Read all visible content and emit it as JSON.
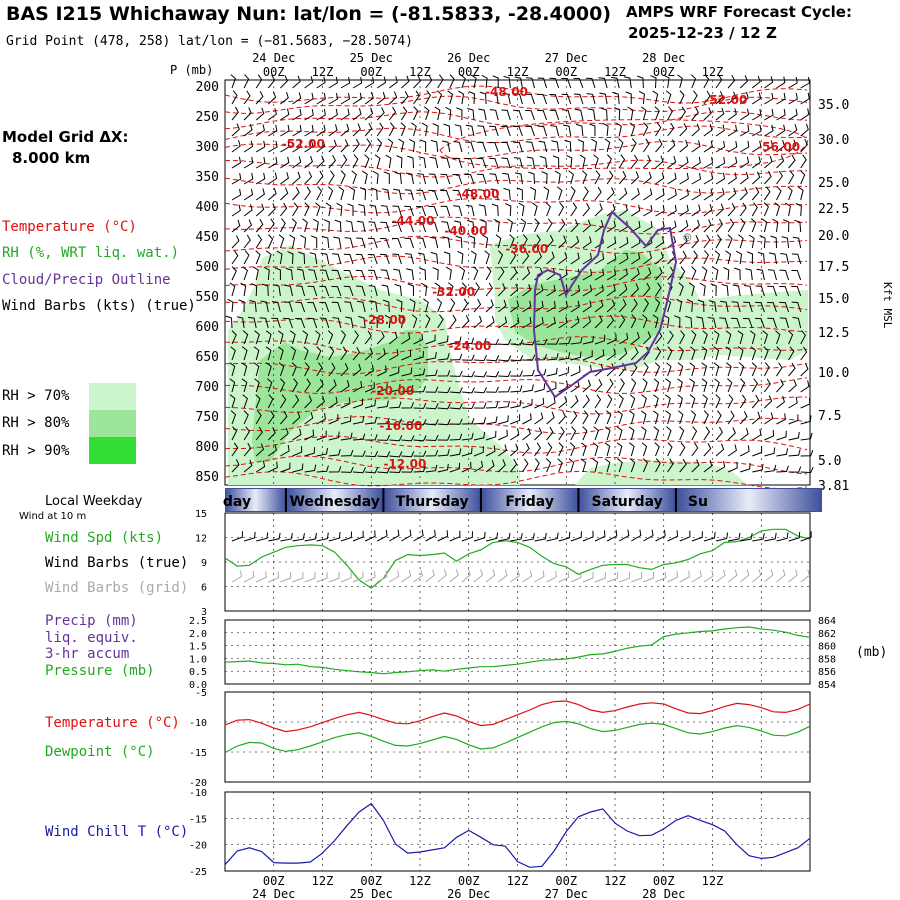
{
  "header": {
    "title": "BAS I215 Whichaway Nun:  lat/lon = (-81.5833, -28.4000)",
    "grid_point": "Grid Point (478, 258) lat/lon = (−81.5683, −28.5074)",
    "cycle_label": "AMPS WRF Forecast Cycle:",
    "cycle_value": "2025-12-23 / 12  Z"
  },
  "left_panel": {
    "model_grid_label": "Model Grid ΔX:",
    "model_grid_value": "8.000 km",
    "legend_items": [
      {
        "text": "Temperature (°C)",
        "color": "#dd1111"
      },
      {
        "text": "RH (%, WRT liq. wat.)",
        "color": "#22aa22"
      },
      {
        "text": "Cloud/Precip Outline",
        "color": "#663399"
      },
      {
        "text": "Wind Barbs (kts) (true)",
        "color": "#000000"
      }
    ],
    "rh_legend": [
      {
        "text": "RH > 70%",
        "color": "#ccf5cc"
      },
      {
        "text": "RH > 80%",
        "color": "#9be69b"
      },
      {
        "text": "RH > 90%",
        "color": "#33dd33"
      }
    ]
  },
  "time_axis": {
    "top_dates": [
      "24 Dec",
      "25 Dec",
      "26 Dec",
      "27 Dec",
      "28 Dec"
    ],
    "hour_labels": [
      "00Z",
      "12Z",
      "00Z",
      "12Z",
      "00Z",
      "12Z",
      "00Z",
      "12Z",
      "00Z",
      "12Z"
    ],
    "bottom_dates": [
      "24 Dec",
      "25 Dec",
      "26 Dec",
      "27 Dec",
      "28 Dec"
    ]
  },
  "weekday_bar": {
    "title": "Local Weekday",
    "days": [
      "day",
      "Wednesday",
      "Thursday",
      "Friday",
      "Saturday",
      "Su"
    ]
  },
  "colors": {
    "temperature": "#dd1111",
    "rh": "#22aa22",
    "cloud": "#663399",
    "wind_chill": "#1a1aaa",
    "grid_barbs": "#aaaaaa",
    "weekday_blue": "#3d4f9c"
  },
  "chart_data": [
    {
      "type": "heatmap",
      "name": "vertical cross-section",
      "ylabel": "P (mb)",
      "yticks": [
        "200",
        "250",
        "300",
        "350",
        "400",
        "450",
        "500",
        "550",
        "600",
        "650",
        "700",
        "750",
        "800",
        "850"
      ],
      "ylim": [
        190,
        865
      ],
      "right_axis_label": "Kft MSL",
      "right_ticks": [
        "35.0",
        "30.0",
        "25.0",
        "22.5",
        "20.0",
        "17.5",
        "15.0",
        "12.5",
        "10.0",
        "7.5",
        "5.0",
        "3.81"
      ],
      "temperature_labels": [
        {
          "text": "-48.00",
          "t": 52,
          "p": 210
        },
        {
          "text": "-52.00",
          "t": 106,
          "p": 223
        },
        {
          "text": "-52.00",
          "t": 2,
          "p": 297
        },
        {
          "text": "-56.00",
          "t": 119,
          "p": 302
        },
        {
          "text": "-48.00",
          "t": 45,
          "p": 380
        },
        {
          "text": "-44.00",
          "t": 29,
          "p": 425
        },
        {
          "text": "-40.00",
          "t": 42,
          "p": 442
        },
        {
          "text": "-36.00",
          "t": 57,
          "p": 472
        },
        {
          "text": "-32.00",
          "t": 39,
          "p": 543
        },
        {
          "text": "-28.00",
          "t": 22,
          "p": 590
        },
        {
          "text": "-24.00",
          "t": 43,
          "p": 633
        },
        {
          "text": "-20.00",
          "t": 24,
          "p": 708
        },
        {
          "text": "-16.00",
          "t": 26,
          "p": 767
        },
        {
          "text": "-12.00",
          "t": 27,
          "p": 830
        }
      ],
      "t_range_hours": [
        -12,
        132
      ]
    },
    {
      "type": "line",
      "name": "10 m wind",
      "title": "Wind at 10 m",
      "labels": [
        "Wind Spd (kts)",
        "Wind Barbs (true)",
        "Wind Barbs (grid)"
      ],
      "yticks": [
        "15",
        "12",
        "9",
        "6",
        "3"
      ],
      "ylim": [
        3,
        15
      ],
      "x": [
        -12,
        -9,
        -6,
        -3,
        0,
        3,
        6,
        9,
        12,
        15,
        18,
        21,
        24,
        27,
        30,
        33,
        36,
        39,
        42,
        45,
        48,
        51,
        54,
        57,
        60,
        63,
        66,
        69,
        72,
        75,
        78,
        81,
        84,
        87,
        90,
        93,
        96,
        99,
        102,
        105,
        108,
        111,
        114,
        117,
        120,
        123,
        126,
        129,
        132
      ],
      "series": [
        {
          "name": "Wind Spd (kts)",
          "values": [
            9.5,
            8.5,
            8.6,
            9.6,
            10.2,
            10.8,
            11.0,
            11.1,
            11.0,
            10.2,
            8.6,
            6.8,
            5.8,
            7.0,
            9.2,
            9.9,
            9.8,
            9.9,
            10.1,
            9.1,
            10.0,
            10.5,
            11.4,
            11.6,
            11.4,
            10.8,
            9.7,
            8.8,
            8.4,
            7.5,
            8.1,
            8.6,
            8.7,
            8.7,
            8.3,
            8.1,
            8.7,
            8.9,
            9.3,
            10.0,
            10.4,
            11.4,
            11.5,
            12.0,
            12.8,
            13.0,
            13.0,
            12.2,
            11.8
          ]
        }
      ]
    },
    {
      "type": "line",
      "name": "precip and pressure",
      "labels": [
        "Precip (mm)",
        "liq. equiv.",
        "3-hr accum",
        "Pressure (mb)"
      ],
      "yticks": [
        "2.5",
        "2.0",
        "1.5",
        "1.0",
        "0.5",
        "0.0"
      ],
      "ylim": [
        0,
        2.5
      ],
      "right_ticks": [
        "864",
        "862",
        "860",
        "858",
        "856",
        "854"
      ],
      "right_unit": "(mb)",
      "x": [
        -12,
        -9,
        -6,
        -3,
        0,
        3,
        6,
        9,
        12,
        15,
        18,
        21,
        24,
        27,
        30,
        33,
        36,
        39,
        42,
        45,
        48,
        51,
        54,
        57,
        60,
        63,
        66,
        69,
        72,
        75,
        78,
        81,
        84,
        87,
        90,
        93,
        96,
        99,
        102,
        105,
        108,
        111,
        114,
        117,
        120,
        123,
        126,
        129,
        132
      ],
      "series": [
        {
          "name": "Pressure (mb)",
          "values": [
            857.4,
            857.5,
            857.6,
            857.3,
            857.2,
            857.0,
            857.1,
            856.7,
            856.6,
            856.3,
            856.1,
            855.9,
            855.8,
            855.6,
            855.8,
            855.9,
            856.1,
            856.2,
            856.0,
            856.3,
            856.5,
            856.7,
            856.7,
            856.9,
            857.1,
            857.4,
            857.7,
            857.8,
            857.9,
            858.2,
            858.6,
            858.7,
            859.1,
            859.6,
            859.9,
            860.1,
            861.4,
            861.8,
            862.0,
            862.2,
            862.3,
            862.6,
            862.8,
            862.9,
            862.6,
            862.4,
            862.1,
            861.6,
            861.3
          ]
        }
      ]
    },
    {
      "type": "line",
      "name": "temperature and dewpoint",
      "labels": [
        "Temperature (°C)",
        "Dewpoint (°C)"
      ],
      "yticks": [
        "-5",
        "-10",
        "-15",
        "-20"
      ],
      "ylim": [
        -20,
        -5
      ],
      "x": [
        -12,
        -9,
        -6,
        -3,
        0,
        3,
        6,
        9,
        12,
        15,
        18,
        21,
        24,
        27,
        30,
        33,
        36,
        39,
        42,
        45,
        48,
        51,
        54,
        57,
        60,
        63,
        66,
        69,
        72,
        75,
        78,
        81,
        84,
        87,
        90,
        93,
        96,
        99,
        102,
        105,
        108,
        111,
        114,
        117,
        120,
        123,
        126,
        129,
        132
      ],
      "series": [
        {
          "name": "Temperature (°C)",
          "values": [
            -10.5,
            -9.7,
            -9.6,
            -10.2,
            -11.0,
            -11.6,
            -11.3,
            -10.8,
            -10.1,
            -9.4,
            -8.8,
            -8.4,
            -8.9,
            -9.6,
            -10.2,
            -10.3,
            -9.8,
            -9.1,
            -8.5,
            -9.0,
            -9.9,
            -10.6,
            -10.4,
            -9.6,
            -8.8,
            -8.0,
            -7.1,
            -6.6,
            -6.5,
            -7.1,
            -8.0,
            -8.4,
            -8.1,
            -7.5,
            -7.0,
            -6.8,
            -7.0,
            -7.8,
            -8.5,
            -8.6,
            -8.1,
            -7.4,
            -6.9,
            -7.1,
            -7.6,
            -8.3,
            -8.4,
            -7.9,
            -7.0
          ]
        },
        {
          "name": "Dewpoint (°C)",
          "values": [
            -15.1,
            -14.0,
            -13.4,
            -13.5,
            -14.4,
            -14.9,
            -14.6,
            -14.0,
            -13.3,
            -12.6,
            -12.1,
            -11.8,
            -12.4,
            -13.2,
            -13.9,
            -14.0,
            -13.6,
            -13.0,
            -12.4,
            -12.9,
            -13.8,
            -14.5,
            -14.3,
            -13.5,
            -12.6,
            -11.7,
            -10.8,
            -10.1,
            -9.9,
            -10.3,
            -11.1,
            -11.6,
            -11.4,
            -10.9,
            -10.4,
            -10.2,
            -10.4,
            -11.1,
            -11.8,
            -12.0,
            -11.6,
            -11.0,
            -10.6,
            -10.9,
            -11.5,
            -12.2,
            -12.3,
            -11.7,
            -10.7
          ]
        }
      ]
    },
    {
      "type": "line",
      "name": "wind chill",
      "labels": [
        "Wind Chill T (°C)"
      ],
      "yticks": [
        "-10",
        "-15",
        "-20",
        "-25"
      ],
      "ylim": [
        -25,
        -10
      ],
      "x": [
        -12,
        -9,
        -6,
        -3,
        0,
        3,
        6,
        9,
        12,
        15,
        18,
        21,
        24,
        27,
        30,
        33,
        36,
        39,
        42,
        45,
        48,
        51,
        54,
        57,
        60,
        63,
        66,
        69,
        72,
        75,
        78,
        81,
        84,
        87,
        90,
        93,
        96,
        99,
        102,
        105,
        108,
        111,
        114,
        117,
        120,
        123,
        126,
        129,
        132
      ],
      "series": [
        {
          "name": "Wind Chill T (°C)",
          "values": [
            -23.8,
            -21.2,
            -20.6,
            -21.3,
            -23.4,
            -23.5,
            -23.5,
            -23.3,
            -21.6,
            -19.2,
            -16.4,
            -13.8,
            -12.2,
            -15.4,
            -19.9,
            -21.6,
            -21.4,
            -21.0,
            -20.6,
            -18.6,
            -17.3,
            -18.6,
            -20.0,
            -20.3,
            -23.2,
            -24.3,
            -24.1,
            -21.2,
            -17.5,
            -14.7,
            -13.8,
            -13.2,
            -15.9,
            -17.4,
            -18.3,
            -18.2,
            -17.0,
            -15.4,
            -14.5,
            -15.4,
            -16.2,
            -17.4,
            -20.0,
            -22.1,
            -22.6,
            -22.4,
            -21.5,
            -20.6,
            -18.8
          ]
        }
      ]
    }
  ]
}
